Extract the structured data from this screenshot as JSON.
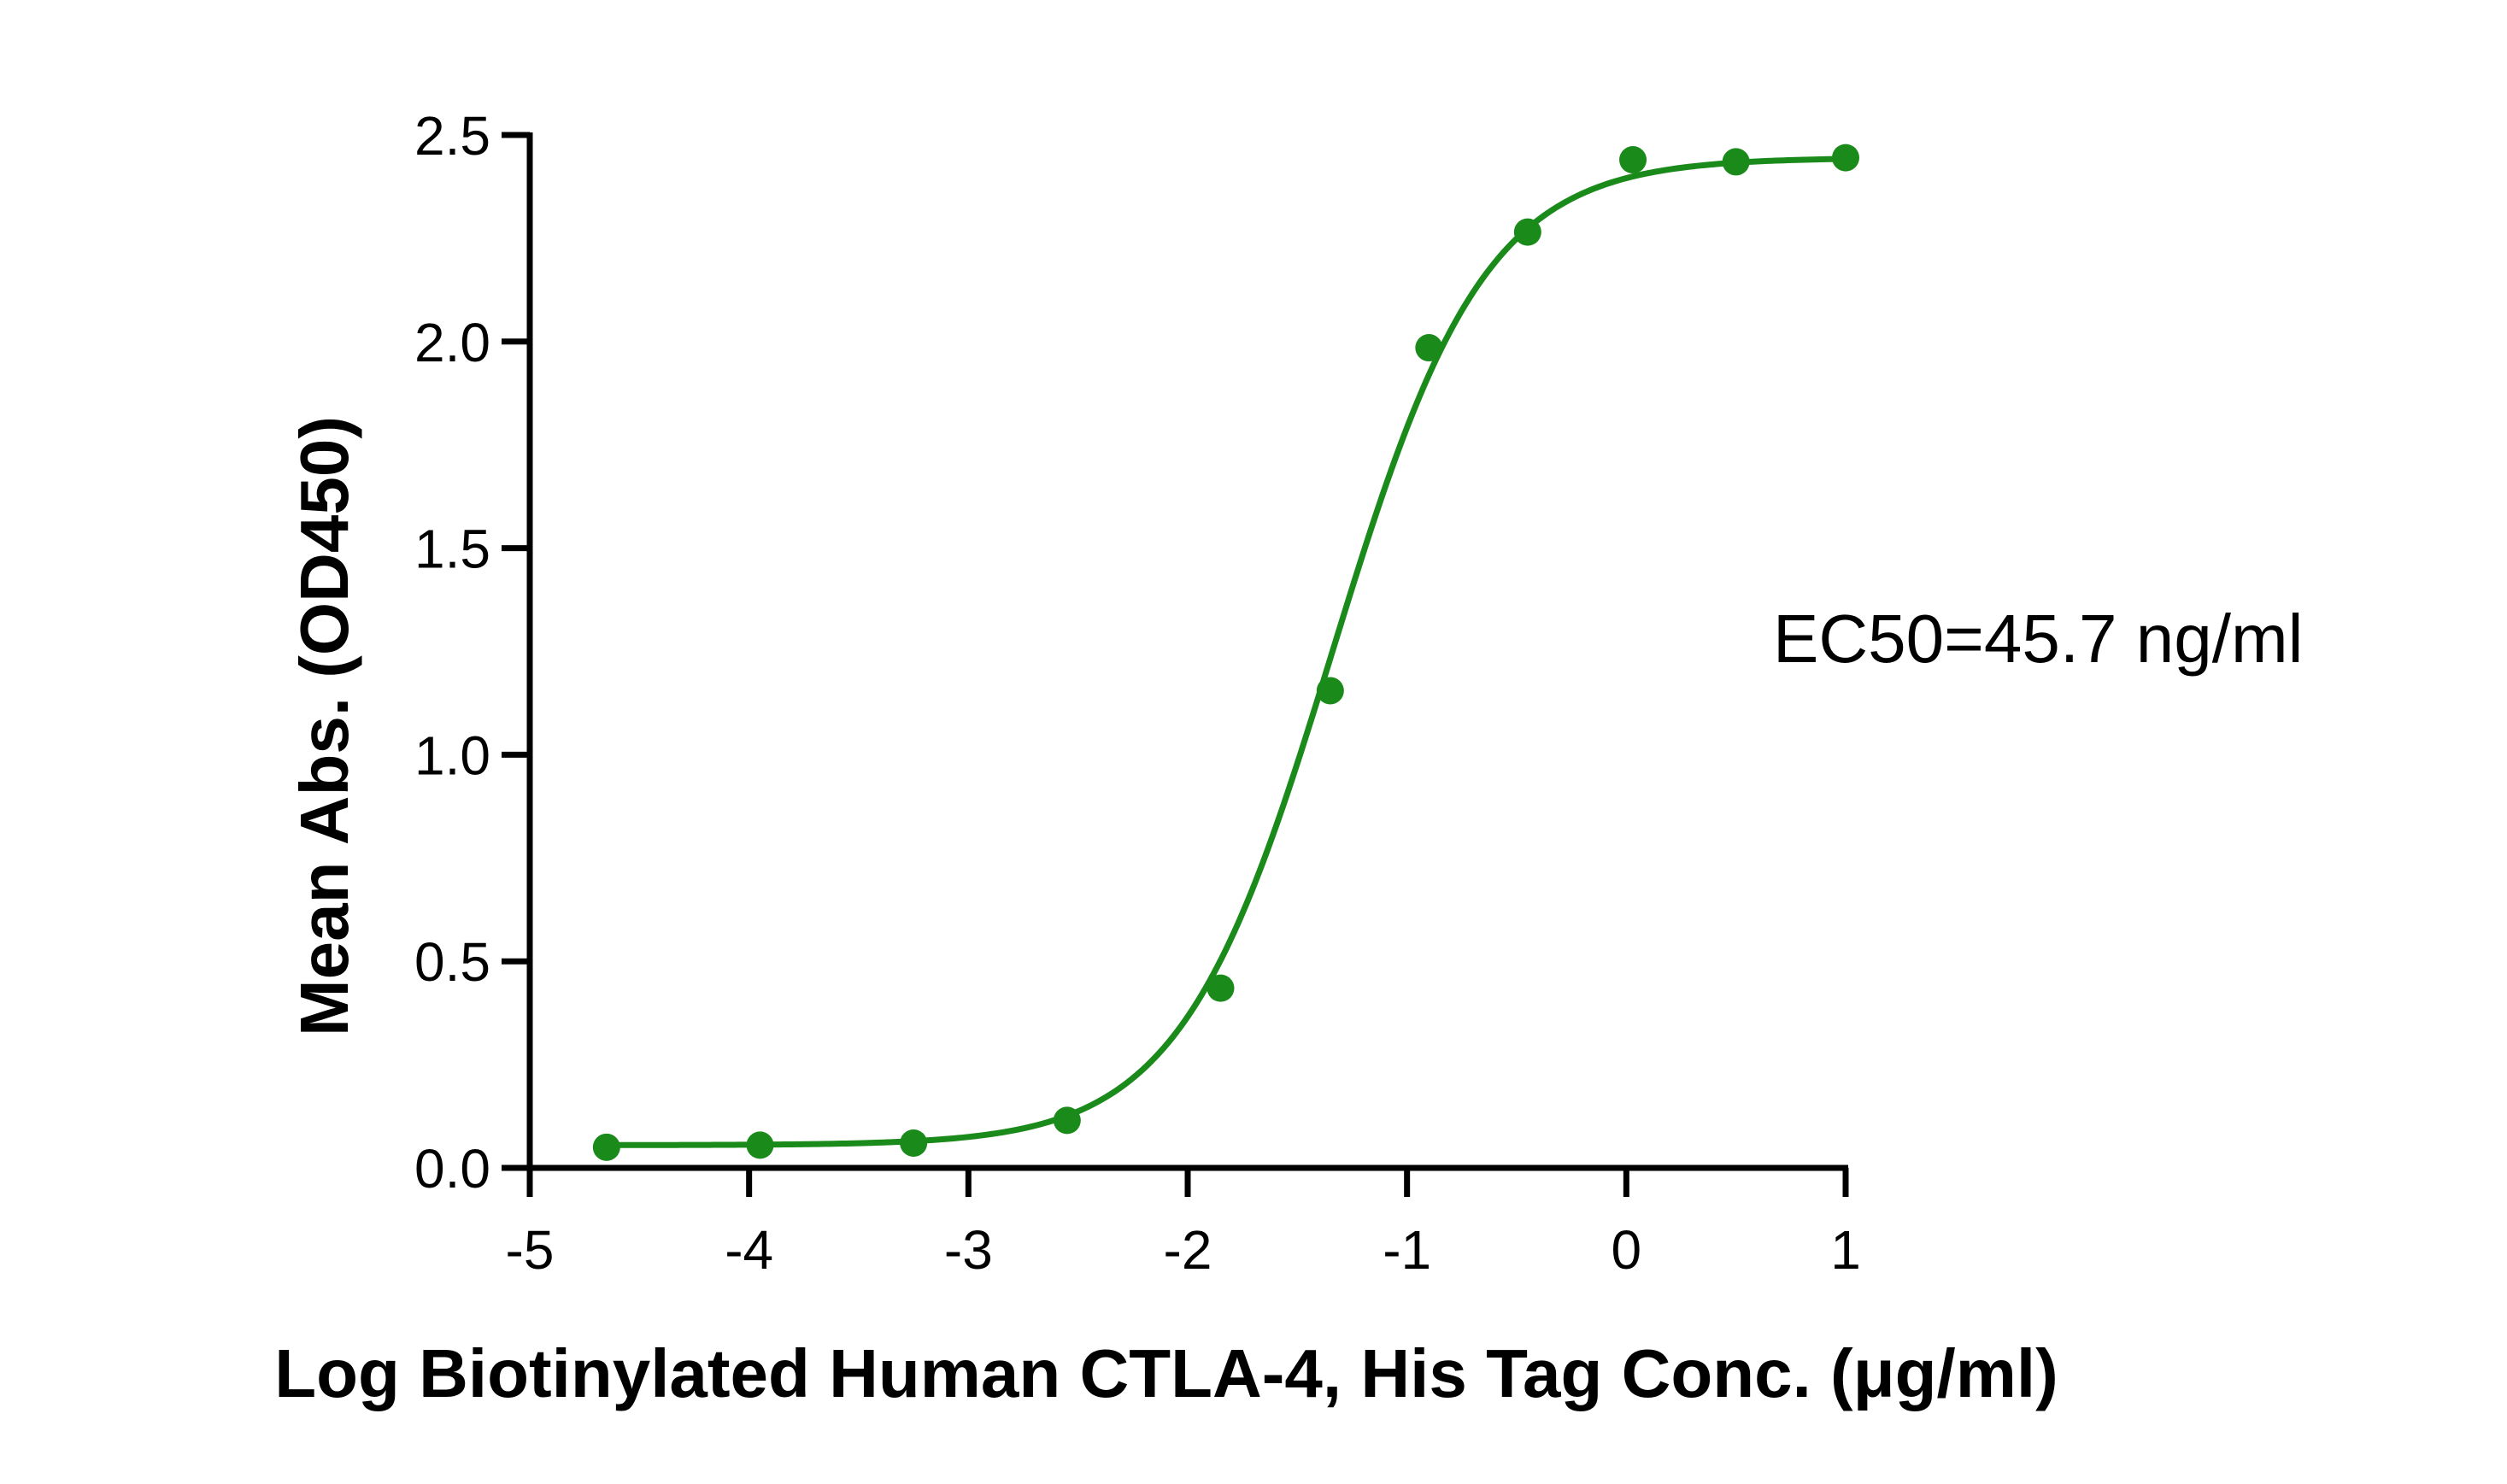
{
  "chart_data": {
    "type": "scatter",
    "xlabel": "Log Biotinylated Human CTLA-4, His Tag Conc. (μg/ml)",
    "ylabel": "Mean Abs. (OD450)",
    "xlim": [
      -5,
      1
    ],
    "ylim": [
      0,
      2.5
    ],
    "xticks": [
      -5,
      -4,
      -3,
      -2,
      -1,
      0,
      1
    ],
    "yticks": [
      0.0,
      0.5,
      1.0,
      1.5,
      2.0,
      2.5
    ],
    "xtick_labels": [
      "-5",
      "-4",
      "-3",
      "-2",
      "-1",
      "0",
      "1"
    ],
    "ytick_labels": [
      "0.0",
      "0.5",
      "1.0",
      "1.5",
      "2.0",
      "2.5"
    ],
    "color": "#1a8a1a",
    "series": [
      {
        "x": [
          -4.65,
          -3.95,
          -3.25,
          -2.55,
          -1.85,
          -1.35,
          -0.9,
          -0.45,
          0.03,
          0.5,
          1.0
        ],
        "y": [
          0.05,
          0.055,
          0.06,
          0.115,
          0.435,
          1.155,
          1.985,
          2.265,
          2.44,
          2.435,
          2.445
        ]
      }
    ],
    "fit_curve": {
      "bottom": 0.055,
      "top": 2.445,
      "log_ec50": -1.34,
      "hill_slope": 1.25,
      "x_range": [
        -4.65,
        1.0
      ]
    },
    "grid": false,
    "legend": "none",
    "annotation": "EC50=45.7 ng/ml"
  }
}
